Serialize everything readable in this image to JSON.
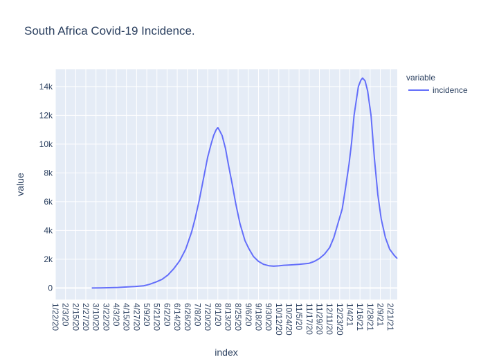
{
  "chart_data": {
    "type": "line",
    "title": "South Africa Covid-19 Incidence.",
    "xlabel": "index",
    "ylabel": "value",
    "ylim": [
      -800,
      15200
    ],
    "yticks": [
      0,
      2000,
      4000,
      6000,
      8000,
      10000,
      12000,
      14000
    ],
    "ytick_labels": [
      "0",
      "2k",
      "4k",
      "6k",
      "8k",
      "10k",
      "12k",
      "14k"
    ],
    "xlim": [
      "2020-01-22",
      "2021-03-01"
    ],
    "xticks": [
      "2020-01-22",
      "2020-02-03",
      "2020-02-15",
      "2020-02-27",
      "2020-03-10",
      "2020-03-22",
      "2020-04-03",
      "2020-04-15",
      "2020-04-27",
      "2020-05-09",
      "2020-05-21",
      "2020-06-02",
      "2020-06-14",
      "2020-06-26",
      "2020-07-08",
      "2020-07-20",
      "2020-08-01",
      "2020-08-13",
      "2020-08-25",
      "2020-09-06",
      "2020-09-18",
      "2020-09-30",
      "2020-10-12",
      "2020-10-24",
      "2020-11-05",
      "2020-11-17",
      "2020-11-29",
      "2020-12-11",
      "2020-12-23",
      "2021-01-04",
      "2021-01-16",
      "2021-01-28",
      "2021-02-09",
      "2021-02-21"
    ],
    "xtick_labels": [
      "1/22/20",
      "2/3/20",
      "2/15/20",
      "2/27/20",
      "3/10/20",
      "3/22/20",
      "4/3/20",
      "4/15/20",
      "4/27/20",
      "5/9/20",
      "5/21/20",
      "6/2/20",
      "6/14/20",
      "6/26/20",
      "7/8/20",
      "7/20/20",
      "8/1/20",
      "8/13/20",
      "8/25/20",
      "9/6/20",
      "9/18/20",
      "9/30/20",
      "10/12/20",
      "10/24/20",
      "11/5/20",
      "11/17/20",
      "11/29/20",
      "12/11/20",
      "12/23/20",
      "1/4/21",
      "1/16/21",
      "1/28/21",
      "2/9/21",
      "2/21/21"
    ],
    "grid": true,
    "legend": {
      "title": "variable",
      "placement": "top-right"
    },
    "colors": {
      "plot_bg": "#E5ECF6",
      "grid": "#ffffff",
      "line": "#636EFA",
      "text": "#2a3f5f"
    },
    "series": [
      {
        "name": "incidence",
        "x": [
          "2020-03-05",
          "2020-03-15",
          "2020-03-25",
          "2020-04-05",
          "2020-04-15",
          "2020-04-25",
          "2020-05-05",
          "2020-05-12",
          "2020-05-20",
          "2020-05-27",
          "2020-06-03",
          "2020-06-10",
          "2020-06-17",
          "2020-06-24",
          "2020-07-01",
          "2020-07-05",
          "2020-07-10",
          "2020-07-15",
          "2020-07-20",
          "2020-07-24",
          "2020-07-27",
          "2020-07-30",
          "2020-08-01",
          "2020-08-03",
          "2020-08-06",
          "2020-08-10",
          "2020-08-14",
          "2020-08-18",
          "2020-08-22",
          "2020-08-27",
          "2020-09-02",
          "2020-09-07",
          "2020-09-12",
          "2020-09-18",
          "2020-09-24",
          "2020-09-30",
          "2020-10-06",
          "2020-10-12",
          "2020-10-18",
          "2020-10-24",
          "2020-10-30",
          "2020-11-05",
          "2020-11-11",
          "2020-11-17",
          "2020-11-23",
          "2020-11-29",
          "2020-12-05",
          "2020-12-11",
          "2020-12-16",
          "2020-12-21",
          "2020-12-26",
          "2020-12-30",
          "2021-01-03",
          "2021-01-06",
          "2021-01-09",
          "2021-01-12",
          "2021-01-14",
          "2021-01-17",
          "2021-01-19",
          "2021-01-22",
          "2021-01-25",
          "2021-01-29",
          "2021-02-02",
          "2021-02-06",
          "2021-02-10",
          "2021-02-15",
          "2021-02-20",
          "2021-02-25",
          "2021-03-01"
        ],
        "values": [
          0,
          10,
          20,
          40,
          70,
          100,
          150,
          250,
          420,
          600,
          900,
          1350,
          1900,
          2700,
          3900,
          4800,
          6100,
          7600,
          9100,
          10000,
          10600,
          11000,
          11150,
          10950,
          10600,
          9700,
          8400,
          7200,
          5900,
          4500,
          3300,
          2700,
          2200,
          1850,
          1650,
          1550,
          1520,
          1540,
          1580,
          1600,
          1620,
          1650,
          1680,
          1720,
          1850,
          2050,
          2350,
          2800,
          3500,
          4500,
          5500,
          7000,
          8600,
          10100,
          12000,
          13200,
          14000,
          14450,
          14600,
          14400,
          13700,
          12000,
          9000,
          6500,
          4800,
          3500,
          2700,
          2300,
          2050
        ]
      }
    ]
  }
}
